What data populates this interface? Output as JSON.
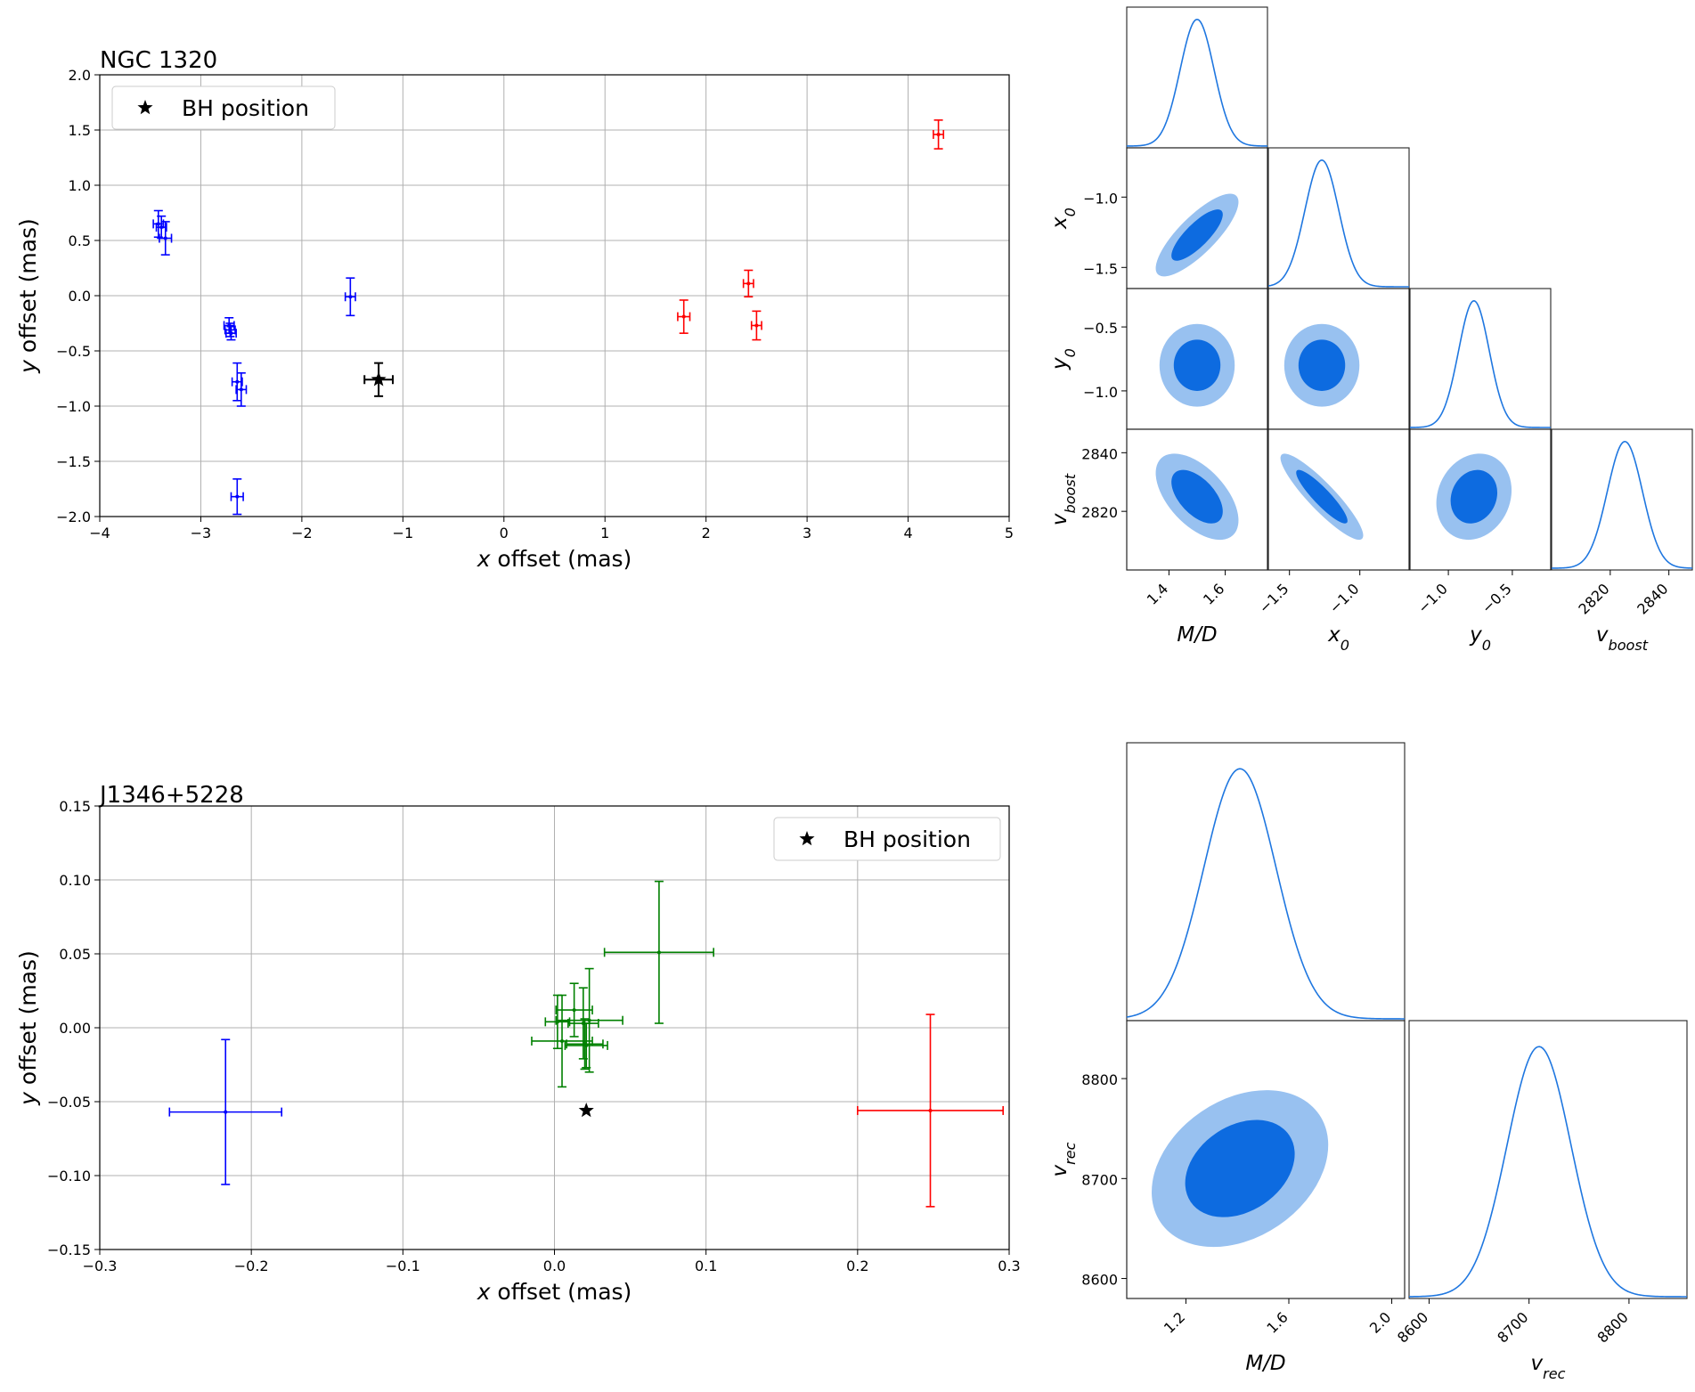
{
  "figure": {
    "top": {
      "scatter": {
        "type": "scatter",
        "title": "NGC 1320",
        "xlabel_var": "x",
        "xlabel_rest": " offset (mas)",
        "ylabel_var": "y",
        "ylabel_rest": " offset (mas)",
        "xlim": [
          -4,
          5
        ],
        "ylim": [
          -2.0,
          2.0
        ],
        "xticks": [
          -4,
          -3,
          -2,
          -1,
          0,
          1,
          2,
          3,
          4,
          5
        ],
        "yticks": [
          -2.0,
          -1.5,
          -1.0,
          -0.5,
          0.0,
          0.5,
          1.0,
          1.5,
          2.0
        ],
        "xtick_labels": [
          "−4",
          "−3",
          "−2",
          "−1",
          "0",
          "1",
          "2",
          "3",
          "4",
          "5"
        ],
        "ytick_labels": [
          "−2.0",
          "−1.5",
          "−1.0",
          "−0.5",
          "0.0",
          "0.5",
          "1.0",
          "1.5",
          "2.0"
        ],
        "grid": true,
        "legend": {
          "label": "BH position",
          "placement": "top-left"
        },
        "series": [
          {
            "color": "#0000ff",
            "points": [
              {
                "x": -3.42,
                "y": 0.65,
                "xerr": 0.05,
                "yerr": 0.12
              },
              {
                "x": -3.39,
                "y": 0.62,
                "xerr": 0.05,
                "yerr": 0.1
              },
              {
                "x": -3.35,
                "y": 0.52,
                "xerr": 0.06,
                "yerr": 0.15
              },
              {
                "x": -2.72,
                "y": -0.27,
                "xerr": 0.05,
                "yerr": 0.07
              },
              {
                "x": -2.71,
                "y": -0.31,
                "xerr": 0.05,
                "yerr": 0.06
              },
              {
                "x": -2.7,
                "y": -0.34,
                "xerr": 0.05,
                "yerr": 0.06
              },
              {
                "x": -2.64,
                "y": -0.78,
                "xerr": 0.05,
                "yerr": 0.17
              },
              {
                "x": -2.6,
                "y": -0.85,
                "xerr": 0.05,
                "yerr": 0.15
              },
              {
                "x": -2.64,
                "y": -1.82,
                "xerr": 0.06,
                "yerr": 0.16
              },
              {
                "x": -1.52,
                "y": -0.01,
                "xerr": 0.05,
                "yerr": 0.17
              }
            ]
          },
          {
            "color": "#ff0000",
            "points": [
              {
                "x": 4.3,
                "y": 1.46,
                "xerr": 0.05,
                "yerr": 0.13
              },
              {
                "x": 1.78,
                "y": -0.19,
                "xerr": 0.06,
                "yerr": 0.15
              },
              {
                "x": 2.42,
                "y": 0.11,
                "xerr": 0.05,
                "yerr": 0.12
              },
              {
                "x": 2.5,
                "y": -0.27,
                "xerr": 0.05,
                "yerr": 0.13
              }
            ]
          }
        ],
        "bh": {
          "x": -1.24,
          "y": -0.76,
          "xerr": 0.14,
          "yerr": 0.15
        }
      },
      "corner": {
        "params": [
          "M/D",
          "x0",
          "y0",
          "vboost"
        ],
        "axis_labels": [
          {
            "base": "M/D",
            "sub": ""
          },
          {
            "base": "x",
            "sub": "0"
          },
          {
            "base": "y",
            "sub": "0"
          },
          {
            "base": "v",
            "sub": "boost"
          }
        ],
        "means": [
          1.5,
          -1.27,
          -0.8,
          2825
        ],
        "sds": [
          0.06,
          0.12,
          0.12,
          6
        ],
        "corr": [
          [
            0,
            0.8,
            0,
            -0.55
          ],
          [
            0.8,
            0,
            0,
            -0.9
          ],
          [
            0,
            0,
            0,
            0.15
          ],
          [
            -0.55,
            -0.9,
            0.15,
            0
          ]
        ],
        "ranges": [
          [
            1.25,
            1.75
          ],
          [
            -1.65,
            -0.65
          ],
          [
            -1.3,
            -0.2
          ],
          [
            2800,
            2848
          ]
        ],
        "xticks": [
          {
            "values": [
              1.4,
              1.6
            ],
            "labels": [
              "1.4",
              "1.6"
            ]
          },
          {
            "values": [
              -1.5,
              -1.0
            ],
            "labels": [
              "−1.5",
              "−1.0"
            ]
          },
          {
            "values": [
              -1.0,
              -0.5
            ],
            "labels": [
              "−1.0",
              "−0.5"
            ]
          },
          {
            "values": [
              2820,
              2840
            ],
            "labels": [
              "2820",
              "2840"
            ]
          }
        ],
        "yticks": [
          null,
          {
            "values": [
              -1.5,
              -1.0
            ],
            "labels": [
              "−1.5",
              "−1.0"
            ]
          },
          {
            "values": [
              -1.0,
              -0.5
            ],
            "labels": [
              "−1.0",
              "−0.5"
            ]
          },
          {
            "values": [
              2820,
              2840
            ],
            "labels": [
              "2820",
              "2840"
            ]
          }
        ]
      }
    },
    "bottom": {
      "scatter": {
        "type": "scatter",
        "title": "J1346+5228",
        "xlabel_var": "x",
        "xlabel_rest": " offset (mas)",
        "ylabel_var": "y",
        "ylabel_rest": " offset (mas)",
        "xlim": [
          -0.3,
          0.3
        ],
        "ylim": [
          -0.15,
          0.15
        ],
        "xticks": [
          -0.3,
          -0.2,
          -0.1,
          0.0,
          0.1,
          0.2,
          0.3
        ],
        "yticks": [
          -0.15,
          -0.1,
          -0.05,
          0.0,
          0.05,
          0.1,
          0.15
        ],
        "xtick_labels": [
          "−0.3",
          "−0.2",
          "−0.1",
          "0.0",
          "0.1",
          "0.2",
          "0.3"
        ],
        "ytick_labels": [
          "−0.15",
          "−0.10",
          "−0.05",
          "0.00",
          "0.05",
          "0.10",
          "0.15"
        ],
        "grid": true,
        "legend": {
          "label": "BH position",
          "placement": "top-right"
        },
        "series": [
          {
            "color": "#0000ff",
            "points": [
              {
                "x": -0.217,
                "y": -0.057,
                "xerr": 0.037,
                "yerr": 0.049
              }
            ]
          },
          {
            "color": "#ff0000",
            "points": [
              {
                "x": 0.248,
                "y": -0.056,
                "xerr": 0.048,
                "yerr": 0.065
              }
            ]
          },
          {
            "color": "#008000",
            "points": [
              {
                "x": 0.069,
                "y": 0.051,
                "xerr": 0.036,
                "yerr": 0.048
              },
              {
                "x": 0.013,
                "y": 0.012,
                "xerr": 0.012,
                "yerr": 0.018
              },
              {
                "x": 0.019,
                "y": 0.003,
                "xerr": 0.01,
                "yerr": 0.024
              },
              {
                "x": 0.023,
                "y": 0.005,
                "xerr": 0.022,
                "yerr": 0.035
              },
              {
                "x": 0.002,
                "y": 0.004,
                "xerr": 0.008,
                "yerr": 0.018
              },
              {
                "x": 0.005,
                "y": -0.009,
                "xerr": 0.02,
                "yerr": 0.031
              },
              {
                "x": 0.02,
                "y": -0.011,
                "xerr": 0.012,
                "yerr": 0.017
              },
              {
                "x": 0.021,
                "y": -0.012,
                "xerr": 0.014,
                "yerr": 0.015
              }
            ]
          }
        ],
        "bh": {
          "x": 0.021,
          "y": -0.056
        }
      },
      "corner": {
        "params": [
          "M/D",
          "vrec"
        ],
        "axis_labels": [
          {
            "base": "M/D",
            "sub": ""
          },
          {
            "base": "v",
            "sub": "rec"
          }
        ],
        "means": [
          1.41,
          8710
        ],
        "sds": [
          0.14,
          32
        ],
        "corr": [
          [
            0,
            0.3
          ],
          [
            0.3,
            0
          ]
        ],
        "ranges": [
          [
            0.97,
            2.05
          ],
          [
            8580,
            8858
          ]
        ],
        "xticks": [
          {
            "values": [
              1.2,
              1.6,
              2.0
            ],
            "labels": [
              "1.2",
              "1.6",
              "2.0"
            ]
          },
          {
            "values": [
              8600,
              8700,
              8800
            ],
            "labels": [
              "8600",
              "8700",
              "8800"
            ]
          }
        ],
        "yticks": [
          null,
          {
            "values": [
              8600,
              8700,
              8800
            ],
            "labels": [
              "8600",
              "8700",
              "8800"
            ]
          }
        ]
      }
    }
  }
}
